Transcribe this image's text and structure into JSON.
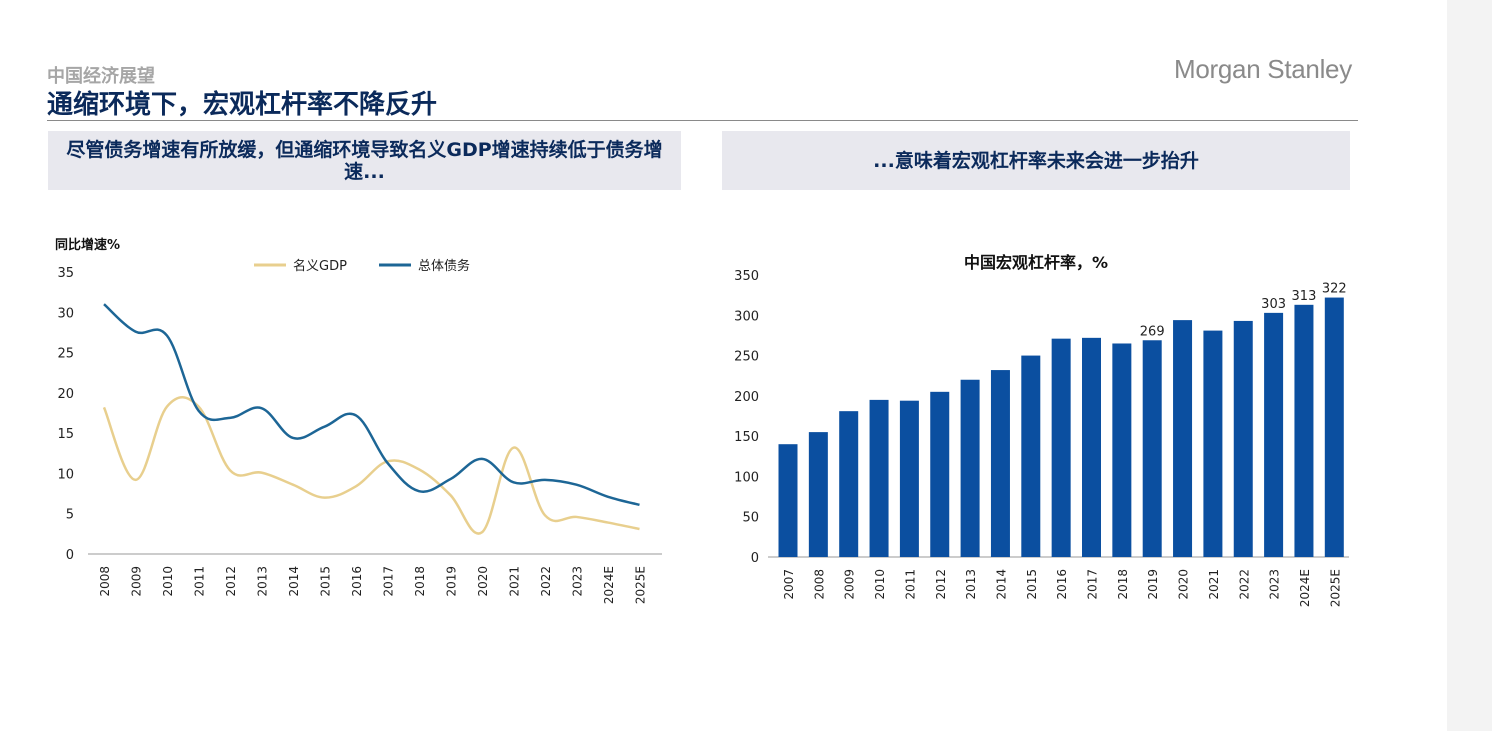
{
  "header": {
    "section": "中国经济展望",
    "title": "通缩环境下，宏观杠杆率不降反升",
    "logo": "Morgan Stanley"
  },
  "banners": {
    "left": "尽管债务增速有所放缓，但通缩环境导致名义GDP增速持续低于债务增速...",
    "right": "...意味着宏观杠杆率未来会进一步抬升"
  },
  "colors": {
    "gdp": "#e8cf8e",
    "debt": "#1d6696",
    "bar": "#0b4fa0",
    "banner_text": "#0b2a5b"
  },
  "chart_data": [
    {
      "type": "line",
      "title": "",
      "ylabel": "同比增速%",
      "xlabel": "",
      "ylim": [
        0,
        35
      ],
      "yticks": [
        0,
        5,
        10,
        15,
        20,
        25,
        30,
        35
      ],
      "categories": [
        "2008",
        "2009",
        "2010",
        "2011",
        "2012",
        "2013",
        "2014",
        "2015",
        "2016",
        "2017",
        "2018",
        "2019",
        "2020",
        "2021",
        "2022",
        "2023",
        "2024E",
        "2025E"
      ],
      "legend_position": "top",
      "grid": false,
      "series": [
        {
          "name": "名义GDP",
          "values": [
            18.2,
            9.2,
            18.3,
            18.3,
            10.4,
            10.1,
            8.6,
            7.0,
            8.4,
            11.5,
            10.5,
            7.3,
            2.7,
            13.2,
            4.8,
            4.6,
            3.9,
            3.1
          ]
        },
        {
          "name": "总体债务",
          "values": [
            31.0,
            27.6,
            27.1,
            17.8,
            16.9,
            18.1,
            14.4,
            15.8,
            17.2,
            11.3,
            7.8,
            9.3,
            11.8,
            8.9,
            9.2,
            8.6,
            7.1,
            6.1
          ]
        }
      ]
    },
    {
      "type": "bar",
      "title": "中国宏观杠杆率，%",
      "xlabel": "",
      "ylabel": "",
      "ylim": [
        0,
        350
      ],
      "yticks": [
        0,
        50,
        100,
        150,
        200,
        250,
        300,
        350
      ],
      "categories": [
        "2007",
        "2008",
        "2009",
        "2010",
        "2011",
        "2012",
        "2013",
        "2014",
        "2015",
        "2016",
        "2017",
        "2018",
        "2019",
        "2020",
        "2021",
        "2022",
        "2023",
        "2024E",
        "2025E"
      ],
      "values": [
        140,
        155,
        181,
        195,
        194,
        205,
        220,
        232,
        250,
        271,
        272,
        265,
        269,
        294,
        281,
        293,
        303,
        313,
        322
      ],
      "data_labels": {
        "2019": "269",
        "2023": "303",
        "2024E": "313",
        "2025E": "322"
      }
    }
  ]
}
